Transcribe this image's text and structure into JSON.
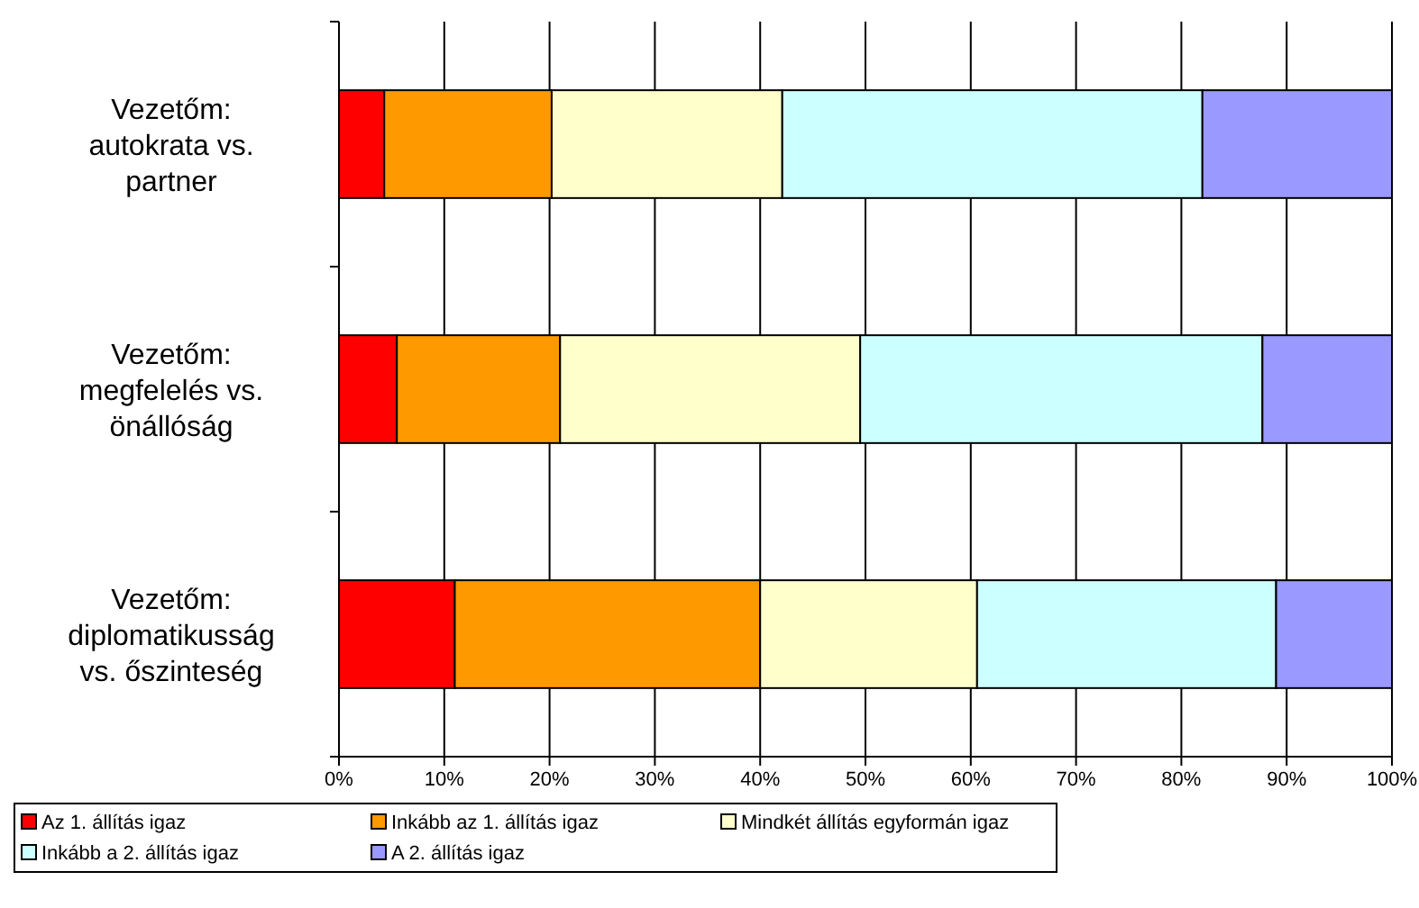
{
  "chart_data": {
    "type": "bar",
    "orientation": "horizontal",
    "stacked": true,
    "categories": [
      "Vezetőm:\nautokrata vs.\npartner",
      "Vezetőm:\nmegfelelés vs.\nönállóság",
      "Vezetőm:\ndiplomatikusság\nvs. őszinteség"
    ],
    "series": [
      {
        "name": "Az 1. állítás igaz",
        "color": "#ff0000",
        "values": [
          4.3,
          5.5,
          11
        ]
      },
      {
        "name": "Inkább az 1. állítás igaz",
        "color": "#ff9900",
        "values": [
          15.9,
          15.5,
          29
        ]
      },
      {
        "name": "Mindkét állítás egyformán igaz",
        "color": "#ffffcc",
        "values": [
          21.9,
          28.5,
          20.6
        ]
      },
      {
        "name": "Inkább a 2. állítás igaz",
        "color": "#ccffff",
        "values": [
          39.9,
          38.2,
          28.4
        ]
      },
      {
        "name": "A 2. állítás igaz",
        "color": "#9999ff",
        "values": [
          18,
          12.3,
          11
        ]
      }
    ],
    "xlim": [
      0,
      100
    ],
    "xticks": [
      {
        "value": 0,
        "label": "0%"
      },
      {
        "value": 10,
        "label": "10%"
      },
      {
        "value": 20,
        "label": "20%"
      },
      {
        "value": 30,
        "label": "30%"
      },
      {
        "value": 40,
        "label": "40%"
      },
      {
        "value": 50,
        "label": "50%"
      },
      {
        "value": 60,
        "label": "60%"
      },
      {
        "value": 70,
        "label": "70%"
      },
      {
        "value": 80,
        "label": "80%"
      },
      {
        "value": 90,
        "label": "90%"
      },
      {
        "value": 100,
        "label": "100%"
      }
    ],
    "grid": "x",
    "legend": "bottom"
  }
}
